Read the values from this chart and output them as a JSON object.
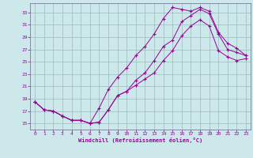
{
  "xlabel": "Windchill (Refroidissement éolien,°C)",
  "xlim": [
    -0.5,
    23.5
  ],
  "ylim": [
    14.0,
    34.5
  ],
  "yticks": [
    15,
    17,
    19,
    21,
    23,
    25,
    27,
    29,
    31,
    33
  ],
  "xticks": [
    0,
    1,
    2,
    3,
    4,
    5,
    6,
    7,
    8,
    9,
    10,
    11,
    12,
    13,
    14,
    15,
    16,
    17,
    18,
    19,
    20,
    21,
    22,
    23
  ],
  "line_color": "#990099",
  "bg_color": "#cce8ea",
  "grid_color": "#99bbbb",
  "line1_x": [
    0,
    1,
    2,
    3,
    4,
    5,
    6,
    7,
    8,
    9,
    10,
    11,
    12,
    13,
    14,
    15,
    16,
    17,
    18,
    19,
    20,
    21,
    22,
    23
  ],
  "line1_y": [
    18.5,
    17.2,
    17.0,
    16.2,
    15.5,
    15.5,
    15.0,
    15.2,
    17.2,
    19.5,
    20.2,
    22.0,
    23.2,
    25.2,
    27.5,
    28.5,
    31.5,
    32.5,
    33.5,
    32.8,
    29.5,
    27.0,
    26.5,
    26.0
  ],
  "line2_x": [
    0,
    1,
    2,
    3,
    4,
    5,
    6,
    7,
    8,
    9,
    10,
    11,
    12,
    13,
    14,
    15,
    16,
    17,
    18,
    19,
    20,
    21,
    22,
    23
  ],
  "line2_y": [
    18.5,
    17.2,
    17.0,
    16.2,
    15.5,
    15.5,
    15.0,
    17.5,
    20.5,
    22.5,
    24.0,
    26.0,
    27.5,
    29.5,
    32.0,
    33.8,
    33.5,
    33.2,
    33.8,
    33.2,
    29.8,
    28.0,
    27.2,
    26.0
  ],
  "line3_x": [
    0,
    1,
    2,
    3,
    4,
    5,
    6,
    7,
    8,
    9,
    10,
    11,
    12,
    13,
    14,
    15,
    16,
    17,
    18,
    19,
    20,
    21,
    22,
    23
  ],
  "line3_y": [
    18.5,
    17.2,
    17.0,
    16.2,
    15.5,
    15.5,
    15.0,
    15.2,
    17.2,
    19.5,
    20.2,
    21.2,
    22.2,
    23.2,
    25.2,
    26.8,
    29.2,
    30.8,
    31.8,
    30.8,
    26.8,
    25.8,
    25.2,
    25.5
  ]
}
